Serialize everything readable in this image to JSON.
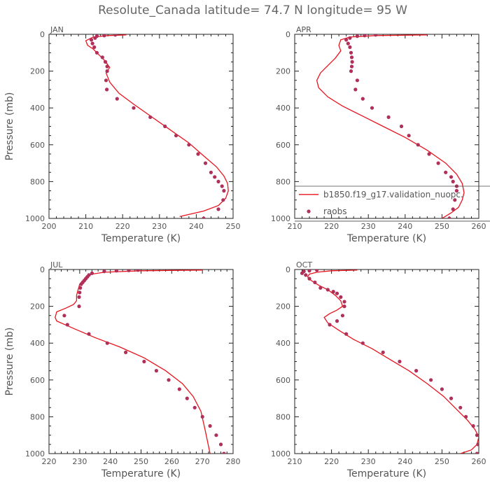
{
  "title": "Resolute_Canada  latitude= 74.7 N longitude= 95 W",
  "colors": {
    "model": "#e8141e",
    "obs": "#b0305a",
    "axis": "#222222",
    "text": "#555555"
  },
  "legend": {
    "model": "b1850.f19_g17.validation_nuopc.",
    "obs": "raobs",
    "placement": "lower-right of APR panel"
  },
  "chart_data": [
    {
      "type": "line",
      "panel": "JAN",
      "xlabel": "Temperature (K)",
      "ylabel": "Pressure (mb)",
      "xlim": [
        200,
        250
      ],
      "ylim": [
        1000,
        0
      ],
      "xticks": [
        200,
        210,
        220,
        230,
        240,
        250
      ],
      "yticks": [
        0,
        200,
        400,
        600,
        800,
        1000
      ],
      "model": {
        "x": [
          221,
          216,
          212,
          210,
          210.5,
          212,
          213.5,
          215,
          216.5,
          215.5,
          216.5,
          219,
          223,
          228,
          233,
          238,
          242,
          245.5,
          247.5,
          248.5,
          248.7,
          248,
          246,
          242,
          235.5
        ],
        "y": [
          3,
          7,
          15,
          35,
          60,
          80,
          110,
          140,
          180,
          210,
          260,
          320,
          380,
          450,
          520,
          590,
          660,
          720,
          770,
          810,
          850,
          890,
          930,
          960,
          990
        ]
      },
      "obs": {
        "x": [
          218,
          215,
          213,
          212.5,
          211.5,
          211.8,
          212.3,
          213,
          214.5,
          215.3,
          215.8,
          215.8,
          215.5,
          215.7,
          218.5,
          223,
          227.5,
          231.5,
          234.5,
          238,
          240.5,
          242.5,
          244,
          245,
          246,
          247,
          247.5,
          247.3,
          246,
          242
        ],
        "y": [
          3,
          7,
          10,
          20,
          30,
          50,
          70,
          100,
          125,
          150,
          175,
          200,
          250,
          300,
          350,
          400,
          450,
          500,
          550,
          600,
          650,
          700,
          750,
          775,
          800,
          825,
          850,
          900,
          950,
          1000
        ]
      }
    },
    {
      "type": "line",
      "panel": "APR",
      "xlabel": "Temperature (K)",
      "ylabel": "",
      "xlim": [
        210,
        260
      ],
      "ylim": [
        1000,
        0
      ],
      "xticks": [
        210,
        220,
        230,
        240,
        250,
        260
      ],
      "yticks": [
        0,
        200,
        400,
        600,
        800,
        1000
      ],
      "model": {
        "x": [
          246,
          232,
          225,
          222.5,
          222,
          222.5,
          221,
          219,
          217,
          216,
          216.5,
          219,
          223,
          228,
          234,
          240,
          246,
          251,
          254,
          255.5,
          256,
          255.5,
          254.5,
          252.5,
          250
        ],
        "y": [
          3,
          7,
          15,
          30,
          60,
          90,
          130,
          170,
          210,
          250,
          290,
          340,
          390,
          440,
          500,
          560,
          630,
          700,
          760,
          810,
          860,
          900,
          940,
          970,
          1000
        ]
      },
      "obs": {
        "x": [
          232,
          229,
          227,
          225,
          224,
          224.5,
          225,
          225.3,
          225.5,
          225.6,
          225.5,
          225.3,
          226.5,
          227,
          228.5,
          231,
          235.5,
          239,
          241,
          243.5,
          246.5,
          249,
          251,
          252.5,
          253,
          254,
          254,
          253.5,
          253,
          252
        ],
        "y": [
          3,
          7,
          10,
          20,
          30,
          50,
          70,
          100,
          125,
          150,
          175,
          200,
          300,
          250,
          350,
          400,
          450,
          500,
          550,
          600,
          650,
          700,
          750,
          775,
          800,
          825,
          850,
          900,
          950,
          1000
        ]
      }
    },
    {
      "type": "line",
      "panel": "JUL",
      "xlabel": "Temperature (K)",
      "ylabel": "Pressure (mb)",
      "xlim": [
        220,
        280
      ],
      "ylim": [
        1000,
        0
      ],
      "xticks": [
        220,
        230,
        240,
        250,
        260,
        270,
        280
      ],
      "yticks": [
        0,
        200,
        400,
        600,
        800,
        1000
      ],
      "model": {
        "x": [
          270,
          250,
          238,
          234,
          232,
          231,
          230,
          229.5,
          229,
          229,
          228,
          225.5,
          222.5,
          222,
          222.5,
          228,
          235,
          243,
          251,
          258,
          263.5,
          267,
          269.5,
          271,
          272.5
        ],
        "y": [
          3,
          7,
          15,
          25,
          40,
          60,
          80,
          110,
          140,
          170,
          190,
          210,
          230,
          260,
          280,
          320,
          370,
          420,
          480,
          550,
          620,
          690,
          770,
          880,
          1000
        ]
      },
      "obs": {
        "x": [
          249,
          246,
          242,
          238,
          234,
          233,
          232.5,
          232,
          231.5,
          231,
          230.5,
          230.2,
          230,
          229.8,
          229.8,
          225,
          226,
          233,
          239,
          245,
          251,
          255,
          259,
          262.5,
          265,
          267.5,
          270,
          272.5,
          274.5,
          276,
          277
        ],
        "y": [
          3,
          5,
          7,
          10,
          20,
          30,
          40,
          50,
          60,
          70,
          80,
          100,
          125,
          150,
          200,
          250,
          300,
          350,
          400,
          450,
          500,
          550,
          600,
          650,
          700,
          750,
          800,
          850,
          900,
          950,
          1000
        ]
      }
    },
    {
      "type": "line",
      "panel": "OCT",
      "xlabel": "Temperature (K)",
      "ylabel": "",
      "xlim": [
        210,
        260
      ],
      "ylim": [
        1000,
        0
      ],
      "xticks": [
        210,
        220,
        230,
        240,
        250,
        260
      ],
      "yticks": [
        0,
        200,
        400,
        600,
        800,
        1000
      ],
      "model": {
        "x": [
          227,
          220,
          216,
          214,
          213.5,
          214.5,
          216.5,
          219,
          221,
          222.5,
          223,
          221.5,
          219.5,
          218,
          219,
          222,
          226,
          231,
          236,
          241,
          246,
          250.5,
          254,
          257,
          259,
          260,
          259.5,
          258,
          255
        ],
        "y": [
          3,
          7,
          15,
          25,
          40,
          60,
          85,
          110,
          140,
          170,
          200,
          220,
          240,
          260,
          290,
          330,
          380,
          430,
          490,
          550,
          620,
          690,
          760,
          820,
          870,
          910,
          950,
          980,
          1000
        ]
      },
      "obs": {
        "x": [
          216,
          214,
          212.5,
          212,
          213,
          214,
          215.5,
          217,
          219,
          220.5,
          221.5,
          222.5,
          223.5,
          223.5,
          223,
          221.5,
          219.5,
          224,
          228.5,
          234,
          238.5,
          243,
          247,
          250,
          252.5,
          255,
          256.5,
          258.5,
          259.5,
          259.8,
          259.5
        ],
        "y": [
          3,
          7,
          10,
          20,
          30,
          50,
          70,
          100,
          110,
          120,
          130,
          150,
          175,
          200,
          250,
          280,
          300,
          350,
          400,
          450,
          500,
          550,
          600,
          650,
          700,
          750,
          800,
          850,
          900,
          950,
          1000
        ]
      }
    }
  ]
}
